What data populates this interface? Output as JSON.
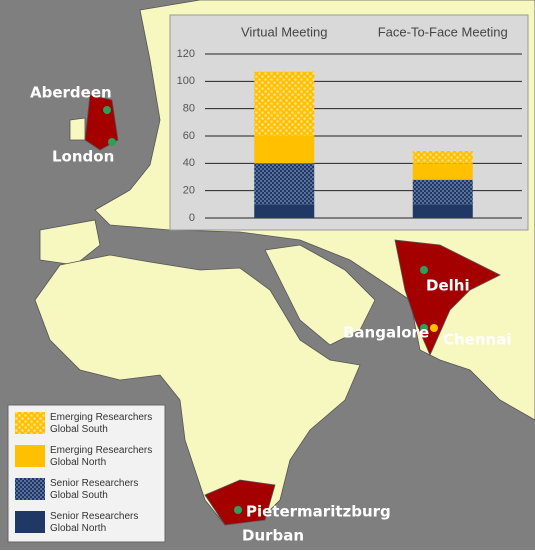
{
  "chart_data": {
    "type": "bar",
    "stacked": true,
    "categories": [
      "Virtual Meeting",
      "Face-To-Face Meeting"
    ],
    "series": [
      {
        "name": "Senior Researchers Global North",
        "color": "#1f3864",
        "hatch": false,
        "values": [
          10,
          10
        ]
      },
      {
        "name": "Senior Researchers Global South",
        "color": "#1f3864",
        "hatch": true,
        "values": [
          30,
          18
        ]
      },
      {
        "name": "Emerging Researchers Global North",
        "color": "#ffc000",
        "hatch": false,
        "values": [
          20,
          12
        ]
      },
      {
        "name": "Emerging Researchers Global South",
        "color": "#ffc000",
        "hatch": true,
        "values": [
          47,
          9
        ]
      }
    ],
    "ylim": [
      0,
      120
    ],
    "yticks": [
      0,
      20,
      40,
      60,
      80,
      100,
      120
    ],
    "grid": true
  },
  "map": {
    "cities": [
      "Aberdeen",
      "London",
      "Delhi",
      "Bangalore",
      "Chennai",
      "Pietermaritzburg",
      "Durban"
    ]
  }
}
